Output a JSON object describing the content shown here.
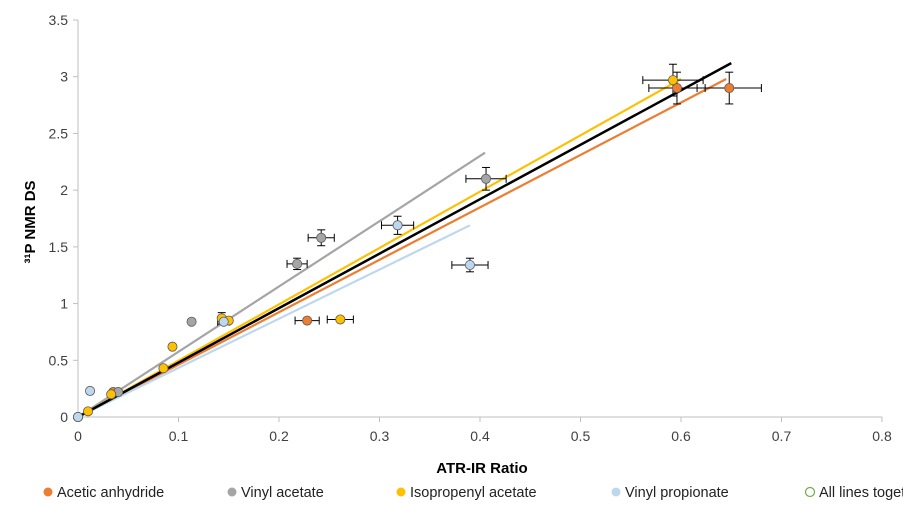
{
  "chart_data": {
    "type": "scatter",
    "xlabel": "ATR-IR Ratio",
    "ylabel": "³¹P NMR  DS",
    "xlim": [
      0,
      0.8
    ],
    "ylim": [
      0,
      3.5
    ],
    "x_ticks": [
      0,
      0.1,
      0.2,
      0.3,
      0.4,
      0.5,
      0.6,
      0.7,
      0.8
    ],
    "x_tick_labels": [
      "0",
      "0.1",
      "0.2",
      "0.3",
      "0.4",
      "0.5",
      "0.6",
      "0.7",
      "0.8"
    ],
    "y_ticks": [
      0,
      0.5,
      1,
      1.5,
      2,
      2.5,
      3,
      3.5
    ],
    "y_tick_labels": [
      "0",
      "0.5",
      "1",
      "1.5",
      "2",
      "2.5",
      "3",
      "3.5"
    ],
    "grid": false,
    "legend_position": "bottom",
    "series": [
      {
        "name": "Acetic anhydride",
        "color": "#ED7D31",
        "points": [
          {
            "x": 0,
            "y": 0
          },
          {
            "x": 0.035,
            "y": 0.22
          },
          {
            "x": 0.228,
            "y": 0.85,
            "xerr": 0.012
          },
          {
            "x": 0.596,
            "y": 2.9,
            "xerr": 0.028,
            "yerr": 0.14
          },
          {
            "x": 0.648,
            "y": 2.9,
            "xerr": 0.032,
            "yerr": 0.14
          }
        ],
        "trendline": {
          "x": [
            0,
            0.645
          ],
          "y": [
            0,
            2.98
          ]
        }
      },
      {
        "name": "Vinyl acetate",
        "color": "#A5A5A5",
        "points": [
          {
            "x": 0,
            "y": 0
          },
          {
            "x": 0.04,
            "y": 0.22
          },
          {
            "x": 0.113,
            "y": 0.84
          },
          {
            "x": 0.218,
            "y": 1.35,
            "xerr": 0.01,
            "yerr": 0.05
          },
          {
            "x": 0.242,
            "y": 1.58,
            "xerr": 0.013,
            "yerr": 0.07
          },
          {
            "x": 0.406,
            "y": 2.1,
            "xerr": 0.02,
            "yerr": 0.1
          }
        ],
        "trendline": {
          "x": [
            0,
            0.405
          ],
          "y": [
            0,
            2.33
          ]
        }
      },
      {
        "name": "Isopropenyl acetate",
        "color": "#FFC000",
        "points": [
          {
            "x": 0,
            "y": 0
          },
          {
            "x": 0.01,
            "y": 0.05
          },
          {
            "x": 0.033,
            "y": 0.2
          },
          {
            "x": 0.085,
            "y": 0.43
          },
          {
            "x": 0.094,
            "y": 0.62
          },
          {
            "x": 0.143,
            "y": 0.87,
            "yerr": 0.05
          },
          {
            "x": 0.15,
            "y": 0.85
          },
          {
            "x": 0.261,
            "y": 0.86,
            "xerr": 0.013
          },
          {
            "x": 0.592,
            "y": 2.97,
            "xerr": 0.03,
            "yerr": 0.14
          }
        ],
        "trendline": {
          "x": [
            0,
            0.6
          ],
          "y": [
            0,
            2.98
          ]
        }
      },
      {
        "name": "Vinyl propionate",
        "color": "#BDD7EE",
        "points": [
          {
            "x": 0,
            "y": 0
          },
          {
            "x": 0.012,
            "y": 0.23
          },
          {
            "x": 0.145,
            "y": 0.84,
            "xerr": 0.006
          },
          {
            "x": 0.318,
            "y": 1.69,
            "xerr": 0.016,
            "yerr": 0.08
          },
          {
            "x": 0.39,
            "y": 1.34,
            "xerr": 0.018,
            "yerr": 0.06
          }
        ],
        "trendline": {
          "x": [
            0,
            0.39
          ],
          "y": [
            0,
            1.69
          ]
        }
      },
      {
        "name": "All lines together",
        "color": "#000000",
        "marker_style": "hollow",
        "marker_color": "#70AD47",
        "points": [],
        "trendline": {
          "x": [
            0,
            0.65
          ],
          "y": [
            0,
            3.12
          ]
        }
      }
    ]
  }
}
